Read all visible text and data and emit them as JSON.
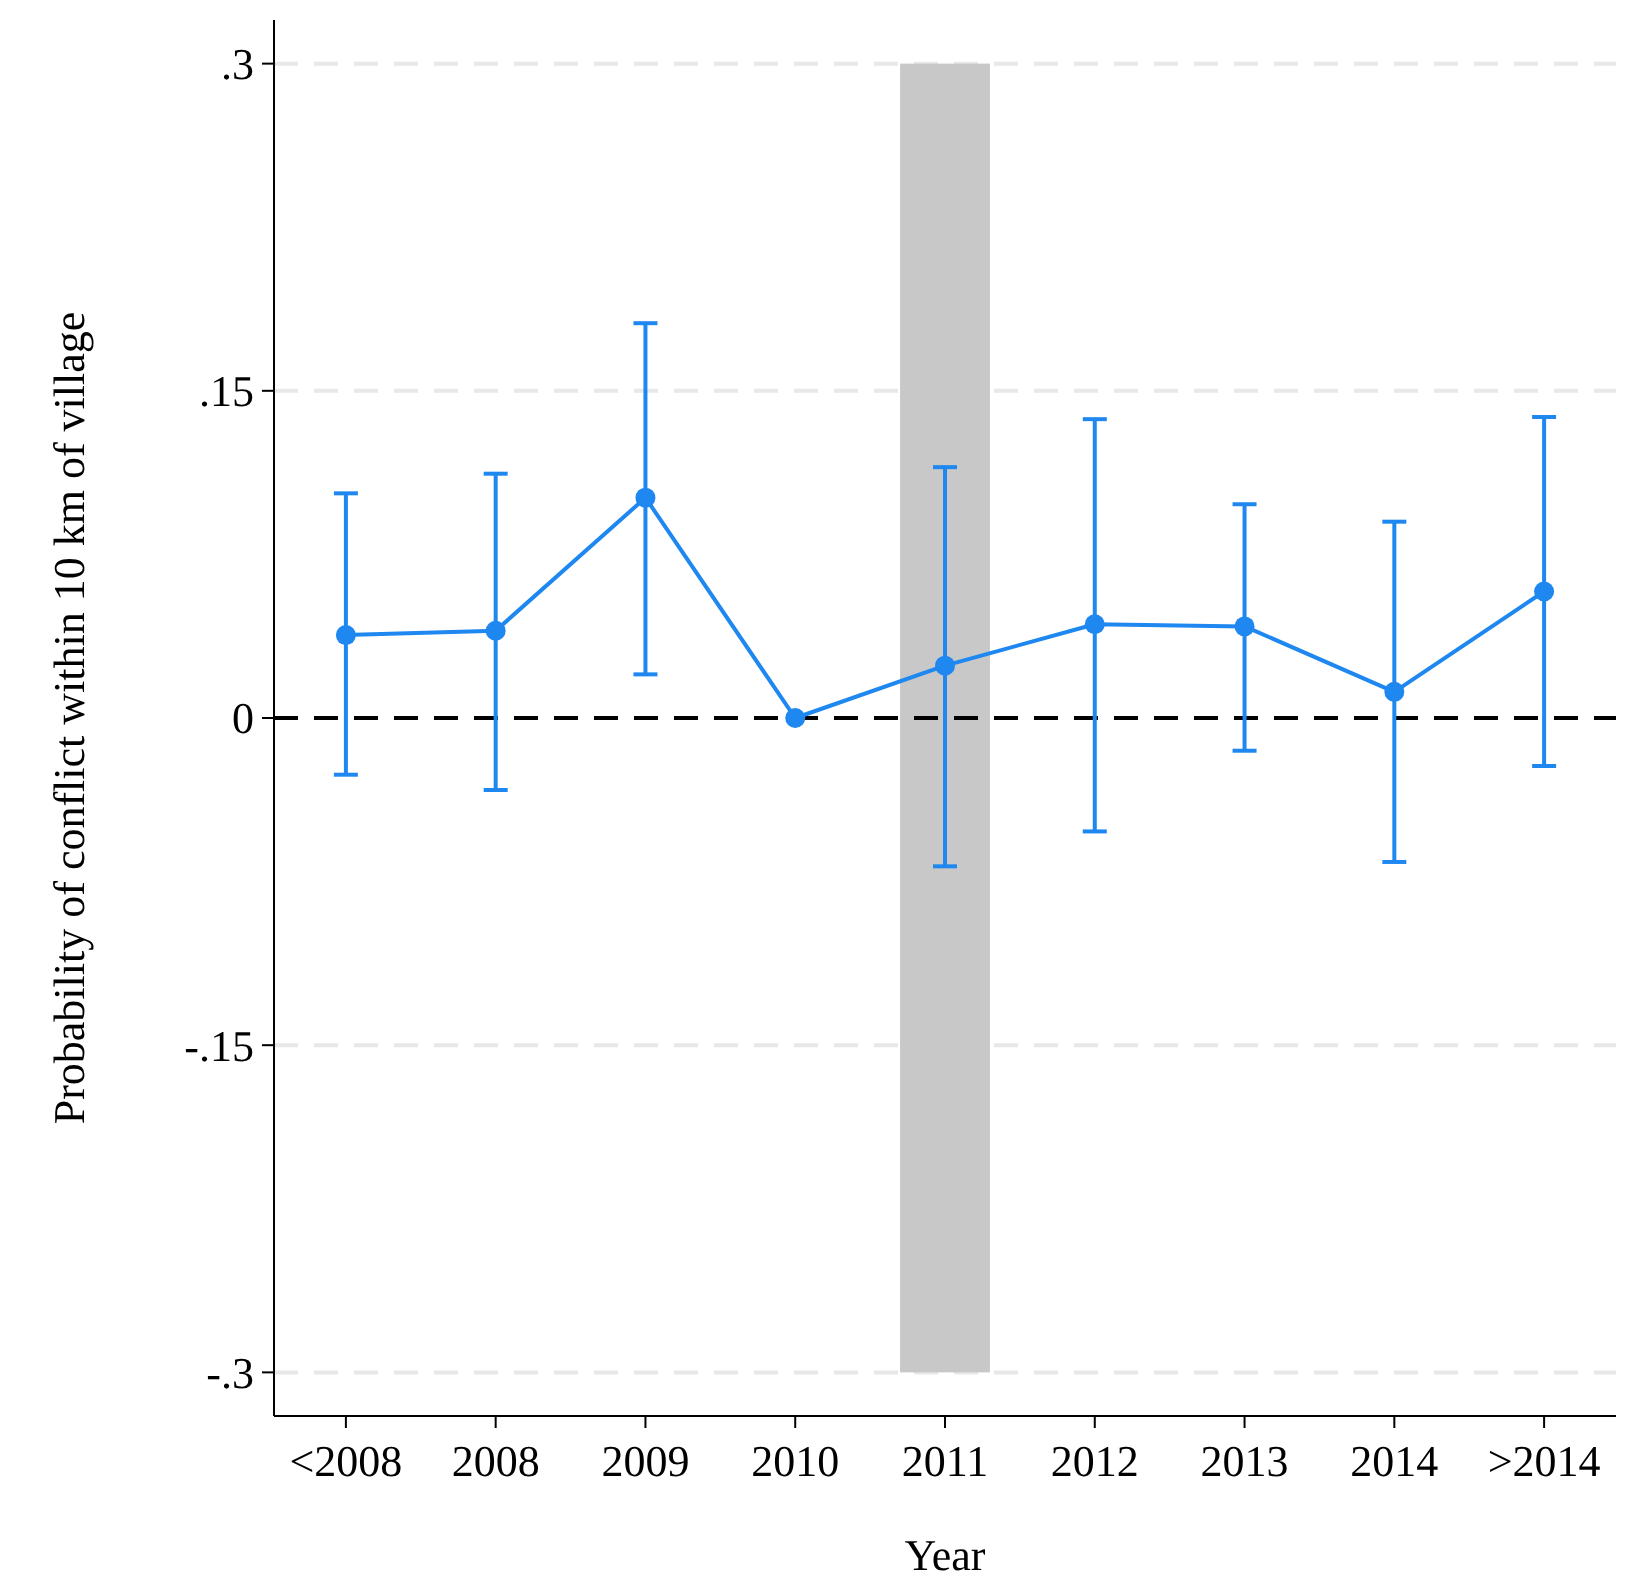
{
  "chart_data": {
    "type": "line",
    "xlabel": "Year",
    "ylabel": "Probability of conflict within 10 km of village",
    "categories": [
      "<2008",
      "2008",
      "2009",
      "2010",
      "2011",
      "2012",
      "2013",
      "2014",
      ">2014"
    ],
    "series": [
      {
        "color": "#1e88f0",
        "values": [
          0.038,
          0.04,
          0.101,
          0,
          0.024,
          0.043,
          0.042,
          0.012,
          0.058
        ],
        "errors": [
          [
            -0.026,
            0.103
          ],
          [
            -0.033,
            0.112
          ],
          [
            0.02,
            0.181
          ],
          null,
          [
            -0.068,
            0.115
          ],
          [
            -0.052,
            0.137
          ],
          [
            -0.015,
            0.098
          ],
          [
            -0.066,
            0.09
          ],
          [
            -0.022,
            0.138
          ]
        ]
      }
    ],
    "ylim": [
      -0.32,
      0.32
    ],
    "yticks": [
      {
        "value": -0.3,
        "label": "-.3"
      },
      {
        "value": -0.15,
        "label": "-.15"
      },
      0,
      {
        "value": 0.15,
        "label": ".15"
      },
      {
        "value": 0.3,
        "label": ".3"
      }
    ],
    "grid": "y",
    "marker": "circle",
    "line_style": "solid",
    "ref_lines": [
      {
        "axis": "y",
        "value": 0,
        "color": "#000000",
        "line_style": "dashed"
      }
    ],
    "bands": [
      {
        "axis": "x",
        "from": "2011",
        "to": "2011",
        "color": "#c8c8c8"
      }
    ]
  }
}
